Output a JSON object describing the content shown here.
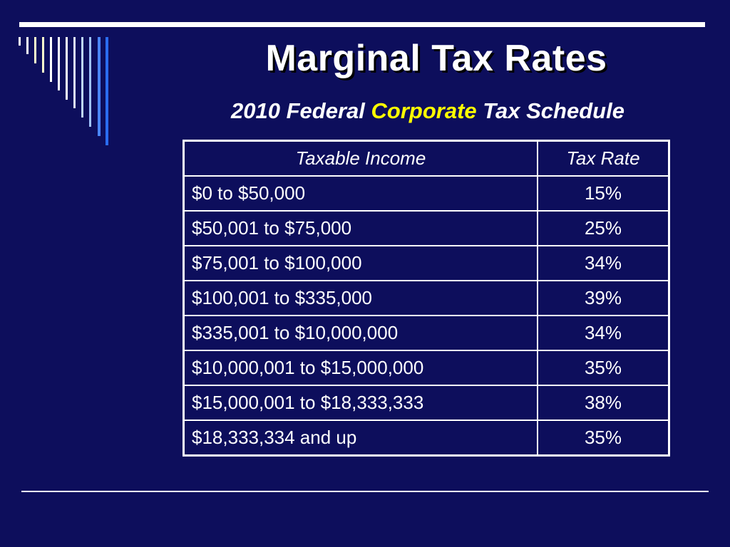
{
  "slide": {
    "title": "Marginal Tax Rates",
    "subtitle_prefix": "2010 Federal ",
    "subtitle_highlight": "Corporate",
    "subtitle_suffix": " Tax Schedule"
  },
  "table": {
    "headers": [
      "Taxable Income",
      "Tax Rate"
    ],
    "rows": [
      {
        "income": "$0 to $50,000",
        "rate": "15%"
      },
      {
        "income": "$50,001 to $75,000",
        "rate": "25%"
      },
      {
        "income": "$75,001 to $100,000",
        "rate": "34%"
      },
      {
        "income": "$100,001 to $335,000",
        "rate": "39%"
      },
      {
        "income": "$335,001 to $10,000,000",
        "rate": "34%"
      },
      {
        "income": "$10,000,001 to $15,000,000",
        "rate": "35%"
      },
      {
        "income": "$15,000,001 to $18,333,333",
        "rate": "38%"
      },
      {
        "income": "$18,333,334 and up",
        "rate": "35%"
      }
    ]
  },
  "colors": {
    "background": "#0d0e5c",
    "text": "#ffffff",
    "highlight": "#ffff00"
  }
}
